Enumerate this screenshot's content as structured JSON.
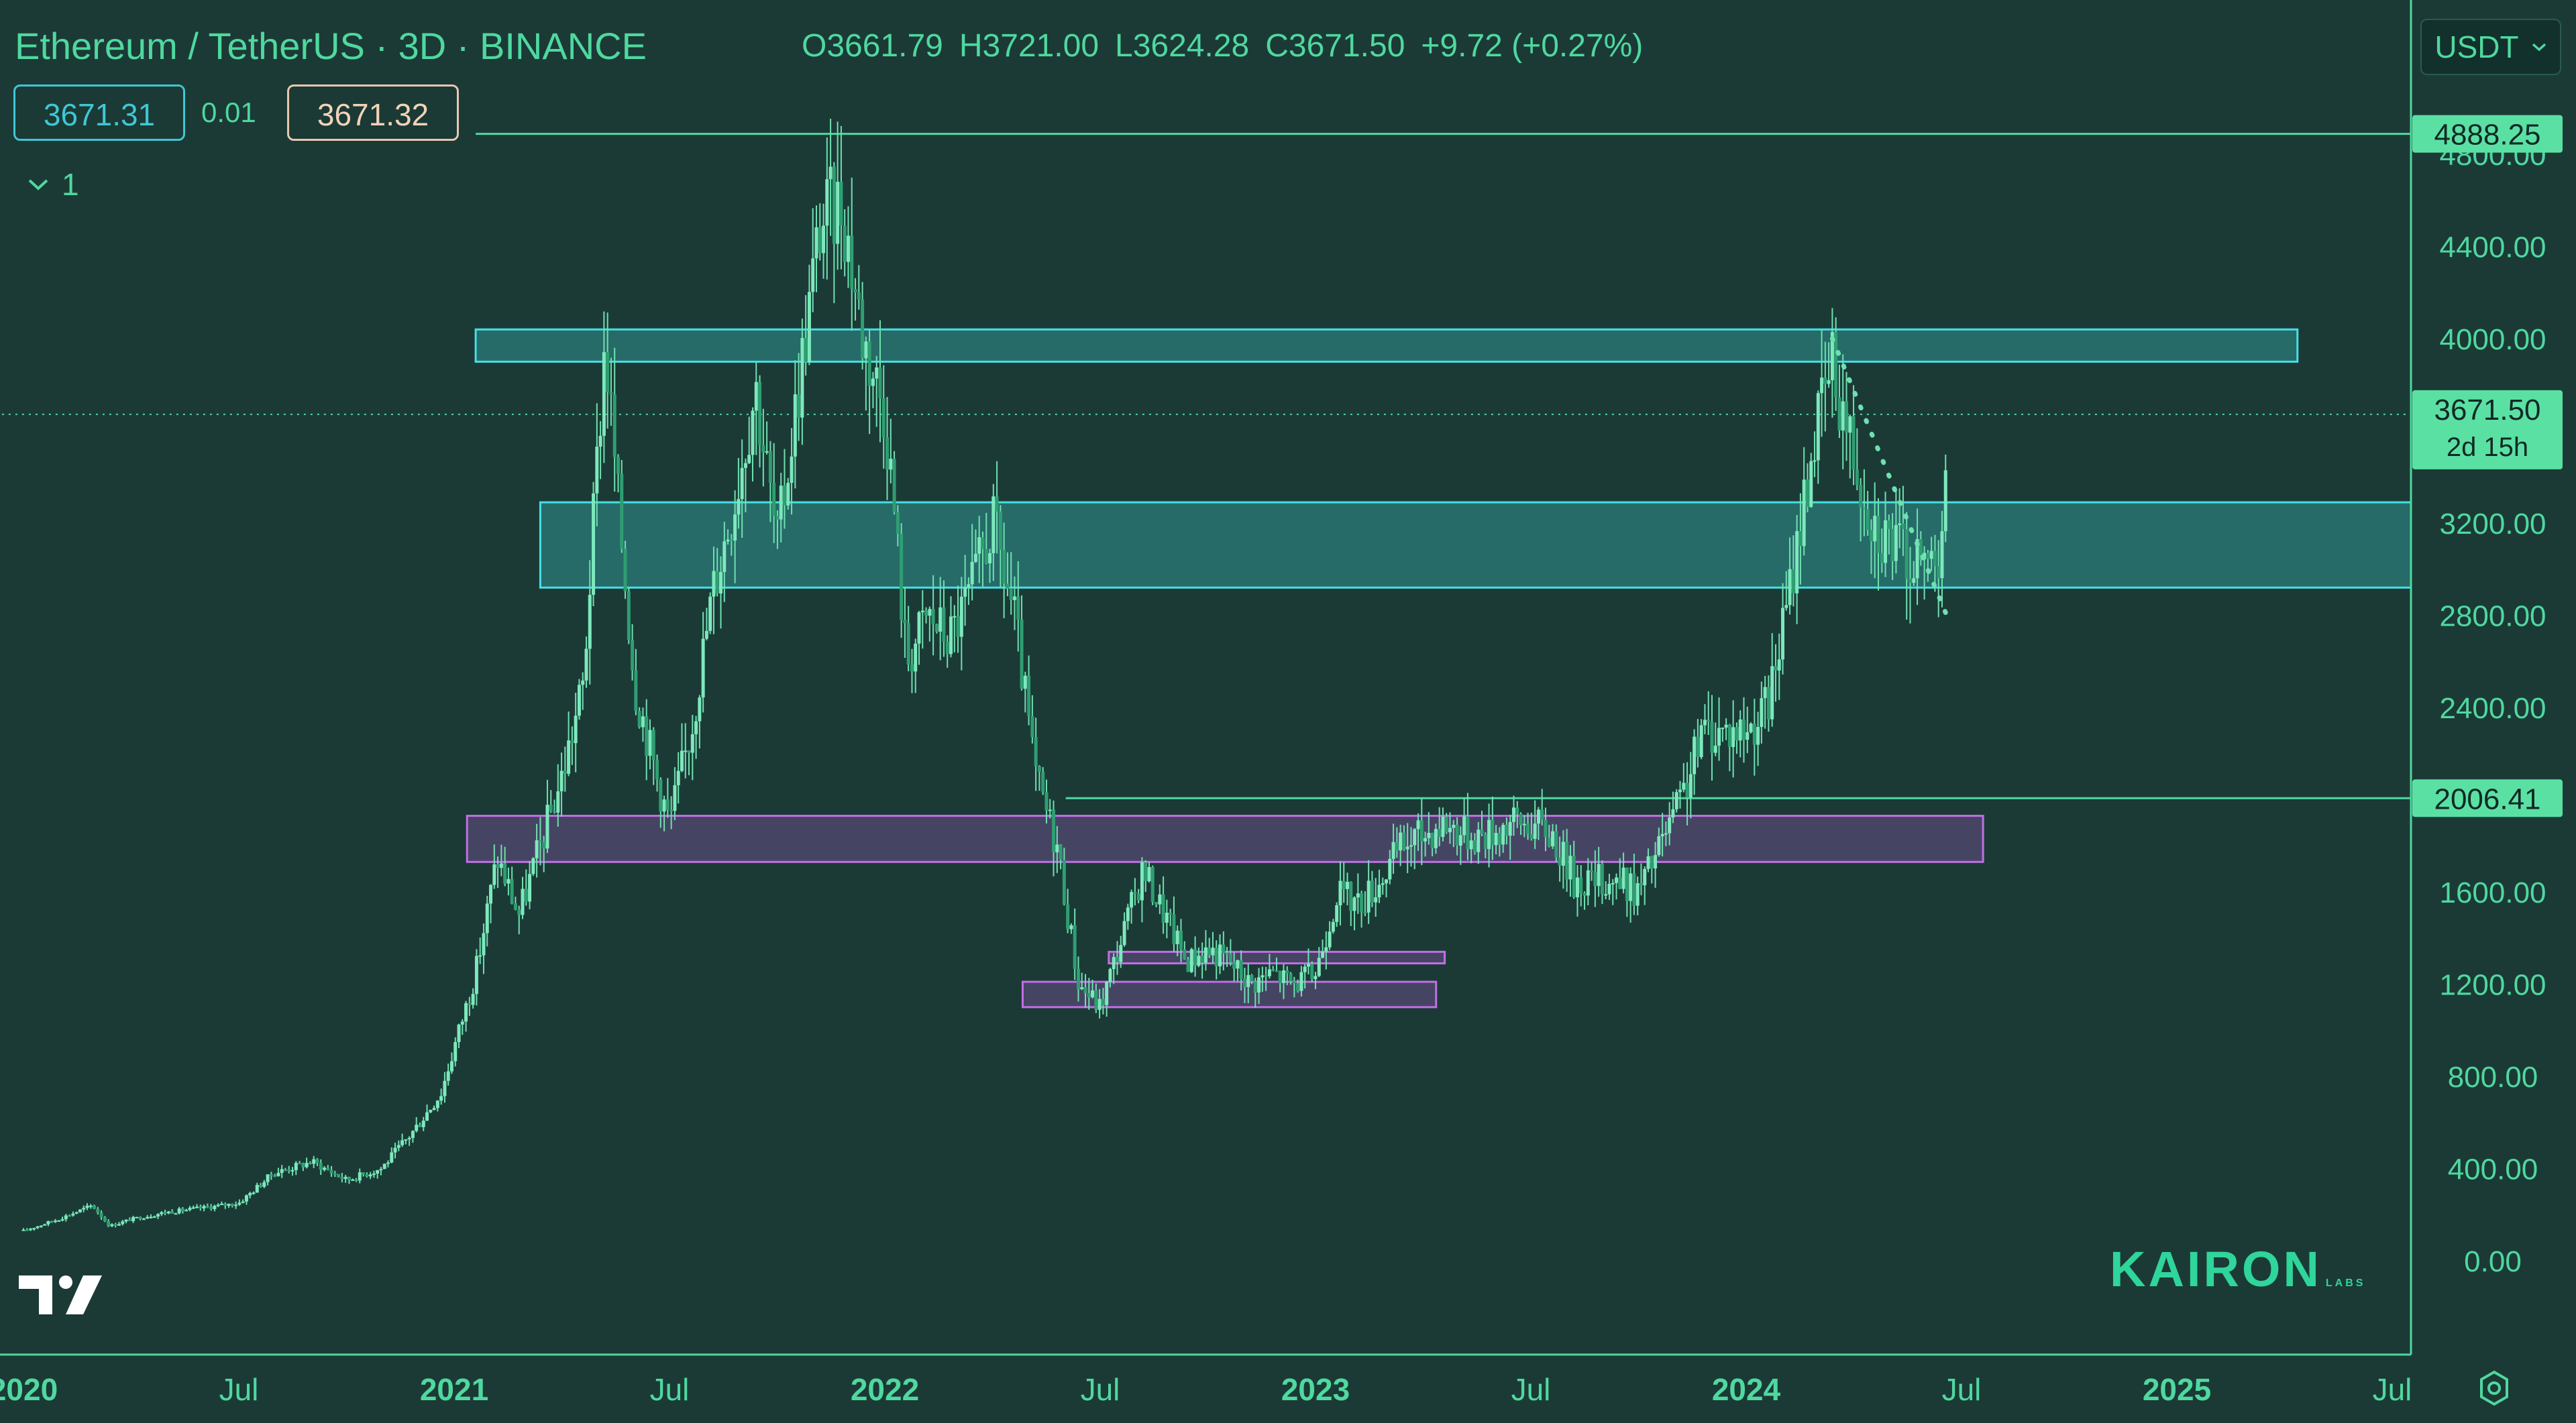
{
  "header": {
    "title": "Ethereum / TetherUS · 3D · BINANCE",
    "open": "O3661.79",
    "high": "H3721.00",
    "low": "L3624.28",
    "close": "C3671.50",
    "change": "+9.72 (+0.27%)"
  },
  "order_panel": {
    "bid": "3671.31",
    "spread": "0.01",
    "ask": "3671.32"
  },
  "indicator_toggle": {
    "count": "1"
  },
  "currency_select": {
    "selected": "USDT"
  },
  "watermark": {
    "brand": "KAIRON",
    "sub": "LABS"
  },
  "colors": {
    "background": "#1b3a36",
    "accent": "#4fd89f",
    "cyan_zone": "#3fd3d4",
    "purple_zone": "#b565d8"
  },
  "chart_data": {
    "type": "candlestick",
    "symbol": "Ethereum / TetherUS",
    "interval": "3D",
    "exchange": "BINANCE",
    "yticks": [
      "0.00",
      "400.00",
      "800.00",
      "1200.00",
      "1600.00",
      "2400.00",
      "2800.00",
      "3200.00",
      "4000.00",
      "4400.00",
      "4800.00"
    ],
    "xticks": [
      "2020",
      "Jul",
      "2021",
      "Jul",
      "2022",
      "Jul",
      "2023",
      "Jul",
      "2024",
      "Jul",
      "2025",
      "Jul"
    ],
    "ylim": [
      -200,
      5000
    ],
    "price_labels": [
      {
        "value": "4888.25",
        "y": 4888.25
      },
      {
        "value": "3671.50",
        "y": 3671.5,
        "sub": "2d 15h"
      },
      {
        "value": "2006.41",
        "y": 2006.41
      }
    ],
    "horizontal_lines": [
      {
        "y": 4888.25,
        "x_from": 2021.05,
        "style": "solid"
      },
      {
        "y": 3671.5,
        "x_from": 2019.95,
        "style": "dotted"
      },
      {
        "y": 2006.41,
        "x_from": 2022.42,
        "style": "solid"
      }
    ],
    "zones": [
      {
        "color": "cyan",
        "x": [
          2021.05,
          2025.28
        ],
        "y": [
          3900,
          4040
        ]
      },
      {
        "color": "cyan",
        "x": [
          2021.2,
          2025.55
        ],
        "y": [
          2920,
          3290
        ]
      },
      {
        "color": "purple",
        "x": [
          2021.03,
          2024.55
        ],
        "y": [
          1730,
          1930
        ]
      },
      {
        "color": "purple",
        "x": [
          2022.52,
          2023.3
        ],
        "y": [
          1290,
          1340
        ]
      },
      {
        "color": "purple",
        "x": [
          2022.32,
          2023.28
        ],
        "y": [
          1100,
          1210
        ]
      }
    ],
    "trendline": {
      "style": "dotted",
      "points": [
        [
          2024.2,
          4000
        ],
        [
          2024.47,
          2780
        ]
      ]
    },
    "series": [
      {
        "values": [
          [
            2020.0,
            130
          ],
          [
            2020.08,
            180
          ],
          [
            2020.16,
            240
          ],
          [
            2020.2,
            150
          ],
          [
            2020.25,
            180
          ],
          [
            2020.33,
            210
          ],
          [
            2020.42,
            230
          ],
          [
            2020.5,
            250
          ],
          [
            2020.58,
            380
          ],
          [
            2020.67,
            430
          ],
          [
            2020.75,
            350
          ],
          [
            2020.83,
            400
          ],
          [
            2020.9,
            550
          ],
          [
            2020.97,
            730
          ],
          [
            2021.05,
            1250
          ],
          [
            2021.1,
            1750
          ],
          [
            2021.15,
            1500
          ],
          [
            2021.2,
            1800
          ],
          [
            2021.25,
            2100
          ],
          [
            2021.3,
            2500
          ],
          [
            2021.35,
            4000
          ],
          [
            2021.38,
            3300
          ],
          [
            2021.42,
            2500
          ],
          [
            2021.47,
            2100
          ],
          [
            2021.5,
            1900
          ],
          [
            2021.55,
            2300
          ],
          [
            2021.6,
            2900
          ],
          [
            2021.65,
            3300
          ],
          [
            2021.7,
            3800
          ],
          [
            2021.75,
            3100
          ],
          [
            2021.8,
            3800
          ],
          [
            2021.85,
            4500
          ],
          [
            2021.9,
            4600
          ],
          [
            2021.95,
            4000
          ],
          [
            2022.0,
            3700
          ],
          [
            2022.02,
            3300
          ],
          [
            2022.05,
            2600
          ],
          [
            2022.1,
            2800
          ],
          [
            2022.15,
            2700
          ],
          [
            2022.2,
            2900
          ],
          [
            2022.25,
            3200
          ],
          [
            2022.3,
            2800
          ],
          [
            2022.35,
            2100
          ],
          [
            2022.4,
            1800
          ],
          [
            2022.45,
            1200
          ],
          [
            2022.5,
            1100
          ],
          [
            2022.55,
            1400
          ],
          [
            2022.6,
            1700
          ],
          [
            2022.65,
            1500
          ],
          [
            2022.7,
            1300
          ],
          [
            2022.75,
            1350
          ],
          [
            2022.8,
            1300
          ],
          [
            2022.85,
            1200
          ],
          [
            2022.9,
            1250
          ],
          [
            2022.95,
            1200
          ],
          [
            2023.0,
            1250
          ],
          [
            2023.05,
            1600
          ],
          [
            2023.1,
            1550
          ],
          [
            2023.15,
            1650
          ],
          [
            2023.2,
            1800
          ],
          [
            2023.25,
            1850
          ],
          [
            2023.3,
            1900
          ],
          [
            2023.35,
            1850
          ],
          [
            2023.4,
            1850
          ],
          [
            2023.45,
            1900
          ],
          [
            2023.5,
            1900
          ],
          [
            2023.55,
            1850
          ],
          [
            2023.6,
            1650
          ],
          [
            2023.65,
            1650
          ],
          [
            2023.7,
            1650
          ],
          [
            2023.75,
            1600
          ],
          [
            2023.8,
            1800
          ],
          [
            2023.85,
            2000
          ],
          [
            2023.9,
            2300
          ],
          [
            2023.95,
            2300
          ],
          [
            2024.0,
            2300
          ],
          [
            2024.05,
            2400
          ],
          [
            2024.1,
            2900
          ],
          [
            2024.15,
            3500
          ],
          [
            2024.2,
            3900
          ],
          [
            2024.25,
            3500
          ],
          [
            2024.3,
            3200
          ],
          [
            2024.35,
            3100
          ],
          [
            2024.4,
            3000
          ],
          [
            2024.45,
            3100
          ],
          [
            2024.47,
            3671.5
          ]
        ]
      }
    ]
  }
}
